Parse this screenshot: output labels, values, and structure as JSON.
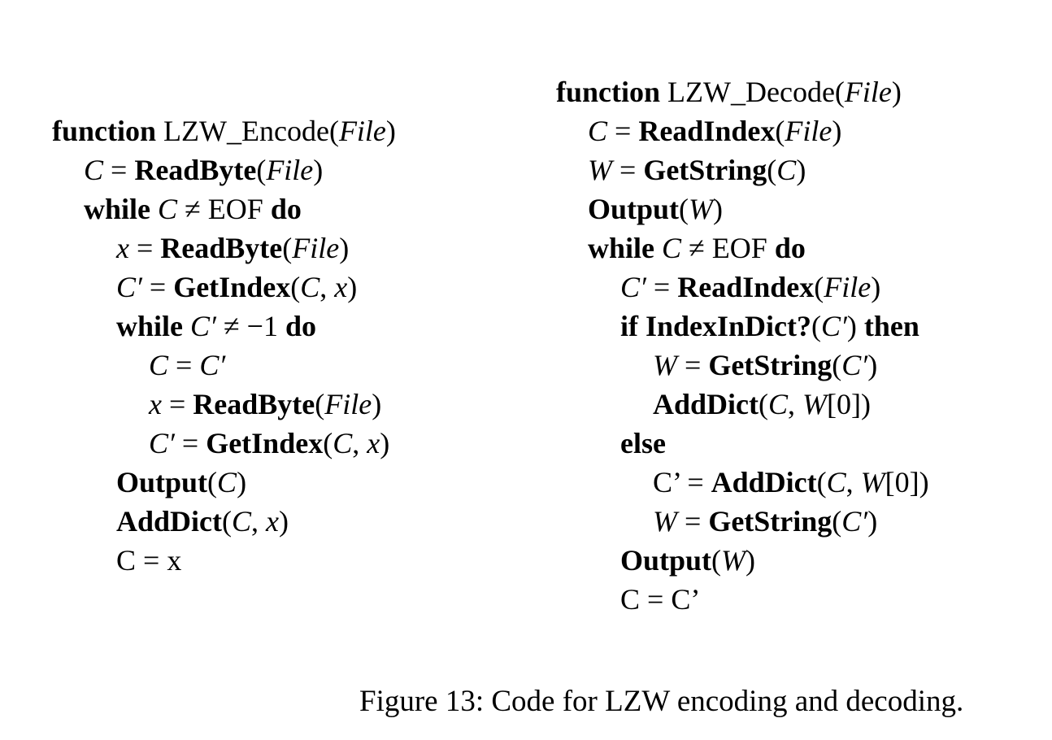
{
  "encode": {
    "lines": [
      {
        "indent": 0,
        "parts": [
          {
            "t": "function",
            "s": "b"
          },
          {
            "t": " LZW_Encode(",
            "s": "n"
          },
          {
            "t": "File",
            "s": "i"
          },
          {
            "t": ")",
            "s": "n"
          }
        ]
      },
      {
        "indent": 1,
        "parts": [
          {
            "t": "C",
            "s": "i"
          },
          {
            "t": " = ",
            "s": "n"
          },
          {
            "t": "ReadByte",
            "s": "b"
          },
          {
            "t": "(",
            "s": "n"
          },
          {
            "t": "File",
            "s": "i"
          },
          {
            "t": ")",
            "s": "n"
          }
        ]
      },
      {
        "indent": 1,
        "parts": [
          {
            "t": "while",
            "s": "b"
          },
          {
            "t": " ",
            "s": "n"
          },
          {
            "t": "C",
            "s": "i"
          },
          {
            "t": " ≠ EOF ",
            "s": "n"
          },
          {
            "t": "do",
            "s": "b"
          }
        ]
      },
      {
        "indent": 2,
        "parts": [
          {
            "t": "x",
            "s": "i"
          },
          {
            "t": " = ",
            "s": "n"
          },
          {
            "t": "ReadByte",
            "s": "b"
          },
          {
            "t": "(",
            "s": "n"
          },
          {
            "t": "File",
            "s": "i"
          },
          {
            "t": ")",
            "s": "n"
          }
        ]
      },
      {
        "indent": 2,
        "parts": [
          {
            "t": "C′",
            "s": "i"
          },
          {
            "t": " = ",
            "s": "n"
          },
          {
            "t": "GetIndex",
            "s": "b"
          },
          {
            "t": "(",
            "s": "n"
          },
          {
            "t": "C",
            "s": "i"
          },
          {
            "t": ", ",
            "s": "n"
          },
          {
            "t": "x",
            "s": "i"
          },
          {
            "t": ")",
            "s": "n"
          }
        ]
      },
      {
        "indent": 2,
        "parts": [
          {
            "t": "while",
            "s": "b"
          },
          {
            "t": " ",
            "s": "n"
          },
          {
            "t": "C′",
            "s": "i"
          },
          {
            "t": " ≠ −1 ",
            "s": "n"
          },
          {
            "t": "do",
            "s": "b"
          }
        ]
      },
      {
        "indent": 3,
        "parts": [
          {
            "t": "C",
            "s": "i"
          },
          {
            "t": " = ",
            "s": "n"
          },
          {
            "t": "C′",
            "s": "i"
          }
        ]
      },
      {
        "indent": 3,
        "parts": [
          {
            "t": "x",
            "s": "i"
          },
          {
            "t": " = ",
            "s": "n"
          },
          {
            "t": "ReadByte",
            "s": "b"
          },
          {
            "t": "(",
            "s": "n"
          },
          {
            "t": "File",
            "s": "i"
          },
          {
            "t": ")",
            "s": "n"
          }
        ]
      },
      {
        "indent": 3,
        "parts": [
          {
            "t": "C′",
            "s": "i"
          },
          {
            "t": " = ",
            "s": "n"
          },
          {
            "t": "GetIndex",
            "s": "b"
          },
          {
            "t": "(",
            "s": "n"
          },
          {
            "t": "C",
            "s": "i"
          },
          {
            "t": ", ",
            "s": "n"
          },
          {
            "t": "x",
            "s": "i"
          },
          {
            "t": ")",
            "s": "n"
          }
        ]
      },
      {
        "indent": 2,
        "parts": [
          {
            "t": "Output",
            "s": "b"
          },
          {
            "t": "(",
            "s": "n"
          },
          {
            "t": "C",
            "s": "i"
          },
          {
            "t": ")",
            "s": "n"
          }
        ]
      },
      {
        "indent": 2,
        "parts": [
          {
            "t": "AddDict",
            "s": "b"
          },
          {
            "t": "(",
            "s": "n"
          },
          {
            "t": "C",
            "s": "i"
          },
          {
            "t": ", ",
            "s": "n"
          },
          {
            "t": "x",
            "s": "i"
          },
          {
            "t": ")",
            "s": "n"
          }
        ]
      },
      {
        "indent": 2,
        "parts": [
          {
            "t": "C = x",
            "s": "n"
          }
        ]
      }
    ]
  },
  "decode": {
    "lines": [
      {
        "indent": 0,
        "parts": [
          {
            "t": "function",
            "s": "b"
          },
          {
            "t": " LZW_Decode(",
            "s": "n"
          },
          {
            "t": "File",
            "s": "i"
          },
          {
            "t": ")",
            "s": "n"
          }
        ]
      },
      {
        "indent": 1,
        "parts": [
          {
            "t": "C",
            "s": "i"
          },
          {
            "t": " = ",
            "s": "n"
          },
          {
            "t": "ReadIndex",
            "s": "b"
          },
          {
            "t": "(",
            "s": "n"
          },
          {
            "t": "File",
            "s": "i"
          },
          {
            "t": ")",
            "s": "n"
          }
        ]
      },
      {
        "indent": 1,
        "parts": [
          {
            "t": "W",
            "s": "i"
          },
          {
            "t": " = ",
            "s": "n"
          },
          {
            "t": "GetString",
            "s": "b"
          },
          {
            "t": "(",
            "s": "n"
          },
          {
            "t": "C",
            "s": "i"
          },
          {
            "t": ")",
            "s": "n"
          }
        ]
      },
      {
        "indent": 1,
        "parts": [
          {
            "t": "Output",
            "s": "b"
          },
          {
            "t": "(",
            "s": "n"
          },
          {
            "t": "W",
            "s": "i"
          },
          {
            "t": ")",
            "s": "n"
          }
        ]
      },
      {
        "indent": 1,
        "parts": [
          {
            "t": "while",
            "s": "b"
          },
          {
            "t": " ",
            "s": "n"
          },
          {
            "t": "C",
            "s": "i"
          },
          {
            "t": " ≠ EOF ",
            "s": "n"
          },
          {
            "t": "do",
            "s": "b"
          }
        ]
      },
      {
        "indent": 2,
        "parts": [
          {
            "t": "C′",
            "s": "i"
          },
          {
            "t": " = ",
            "s": "n"
          },
          {
            "t": "ReadIndex",
            "s": "b"
          },
          {
            "t": "(",
            "s": "n"
          },
          {
            "t": "File",
            "s": "i"
          },
          {
            "t": ")",
            "s": "n"
          }
        ]
      },
      {
        "indent": 2,
        "parts": [
          {
            "t": "if IndexInDict?",
            "s": "b"
          },
          {
            "t": "(",
            "s": "n"
          },
          {
            "t": "C′",
            "s": "i"
          },
          {
            "t": ") ",
            "s": "n"
          },
          {
            "t": "then",
            "s": "b"
          }
        ]
      },
      {
        "indent": 3,
        "parts": [
          {
            "t": "W",
            "s": "i"
          },
          {
            "t": " = ",
            "s": "n"
          },
          {
            "t": "GetString",
            "s": "b"
          },
          {
            "t": "(",
            "s": "n"
          },
          {
            "t": "C′",
            "s": "i"
          },
          {
            "t": ")",
            "s": "n"
          }
        ]
      },
      {
        "indent": 3,
        "parts": [
          {
            "t": "AddDict",
            "s": "b"
          },
          {
            "t": "(",
            "s": "n"
          },
          {
            "t": "C",
            "s": "i"
          },
          {
            "t": ", ",
            "s": "n"
          },
          {
            "t": "W",
            "s": "i"
          },
          {
            "t": "[0])",
            "s": "n"
          }
        ]
      },
      {
        "indent": 2,
        "parts": [
          {
            "t": "else",
            "s": "b"
          }
        ]
      },
      {
        "indent": 3,
        "parts": [
          {
            "t": "C’ = ",
            "s": "n"
          },
          {
            "t": "AddDict",
            "s": "b"
          },
          {
            "t": "(",
            "s": "n"
          },
          {
            "t": "C",
            "s": "i"
          },
          {
            "t": ", ",
            "s": "n"
          },
          {
            "t": "W",
            "s": "i"
          },
          {
            "t": "[0])",
            "s": "n"
          }
        ]
      },
      {
        "indent": 3,
        "parts": [
          {
            "t": "W",
            "s": "i"
          },
          {
            "t": " = ",
            "s": "n"
          },
          {
            "t": "GetString",
            "s": "b"
          },
          {
            "t": "(",
            "s": "n"
          },
          {
            "t": "C′",
            "s": "i"
          },
          {
            "t": ")",
            "s": "n"
          }
        ]
      },
      {
        "indent": 2,
        "parts": [
          {
            "t": "Output",
            "s": "b"
          },
          {
            "t": "(",
            "s": "n"
          },
          {
            "t": "W",
            "s": "i"
          },
          {
            "t": ")",
            "s": "n"
          }
        ]
      },
      {
        "indent": 2,
        "parts": [
          {
            "t": "C = C’",
            "s": "n"
          }
        ]
      }
    ]
  },
  "caption": "Figure 13: Code for LZW encoding and decoding."
}
